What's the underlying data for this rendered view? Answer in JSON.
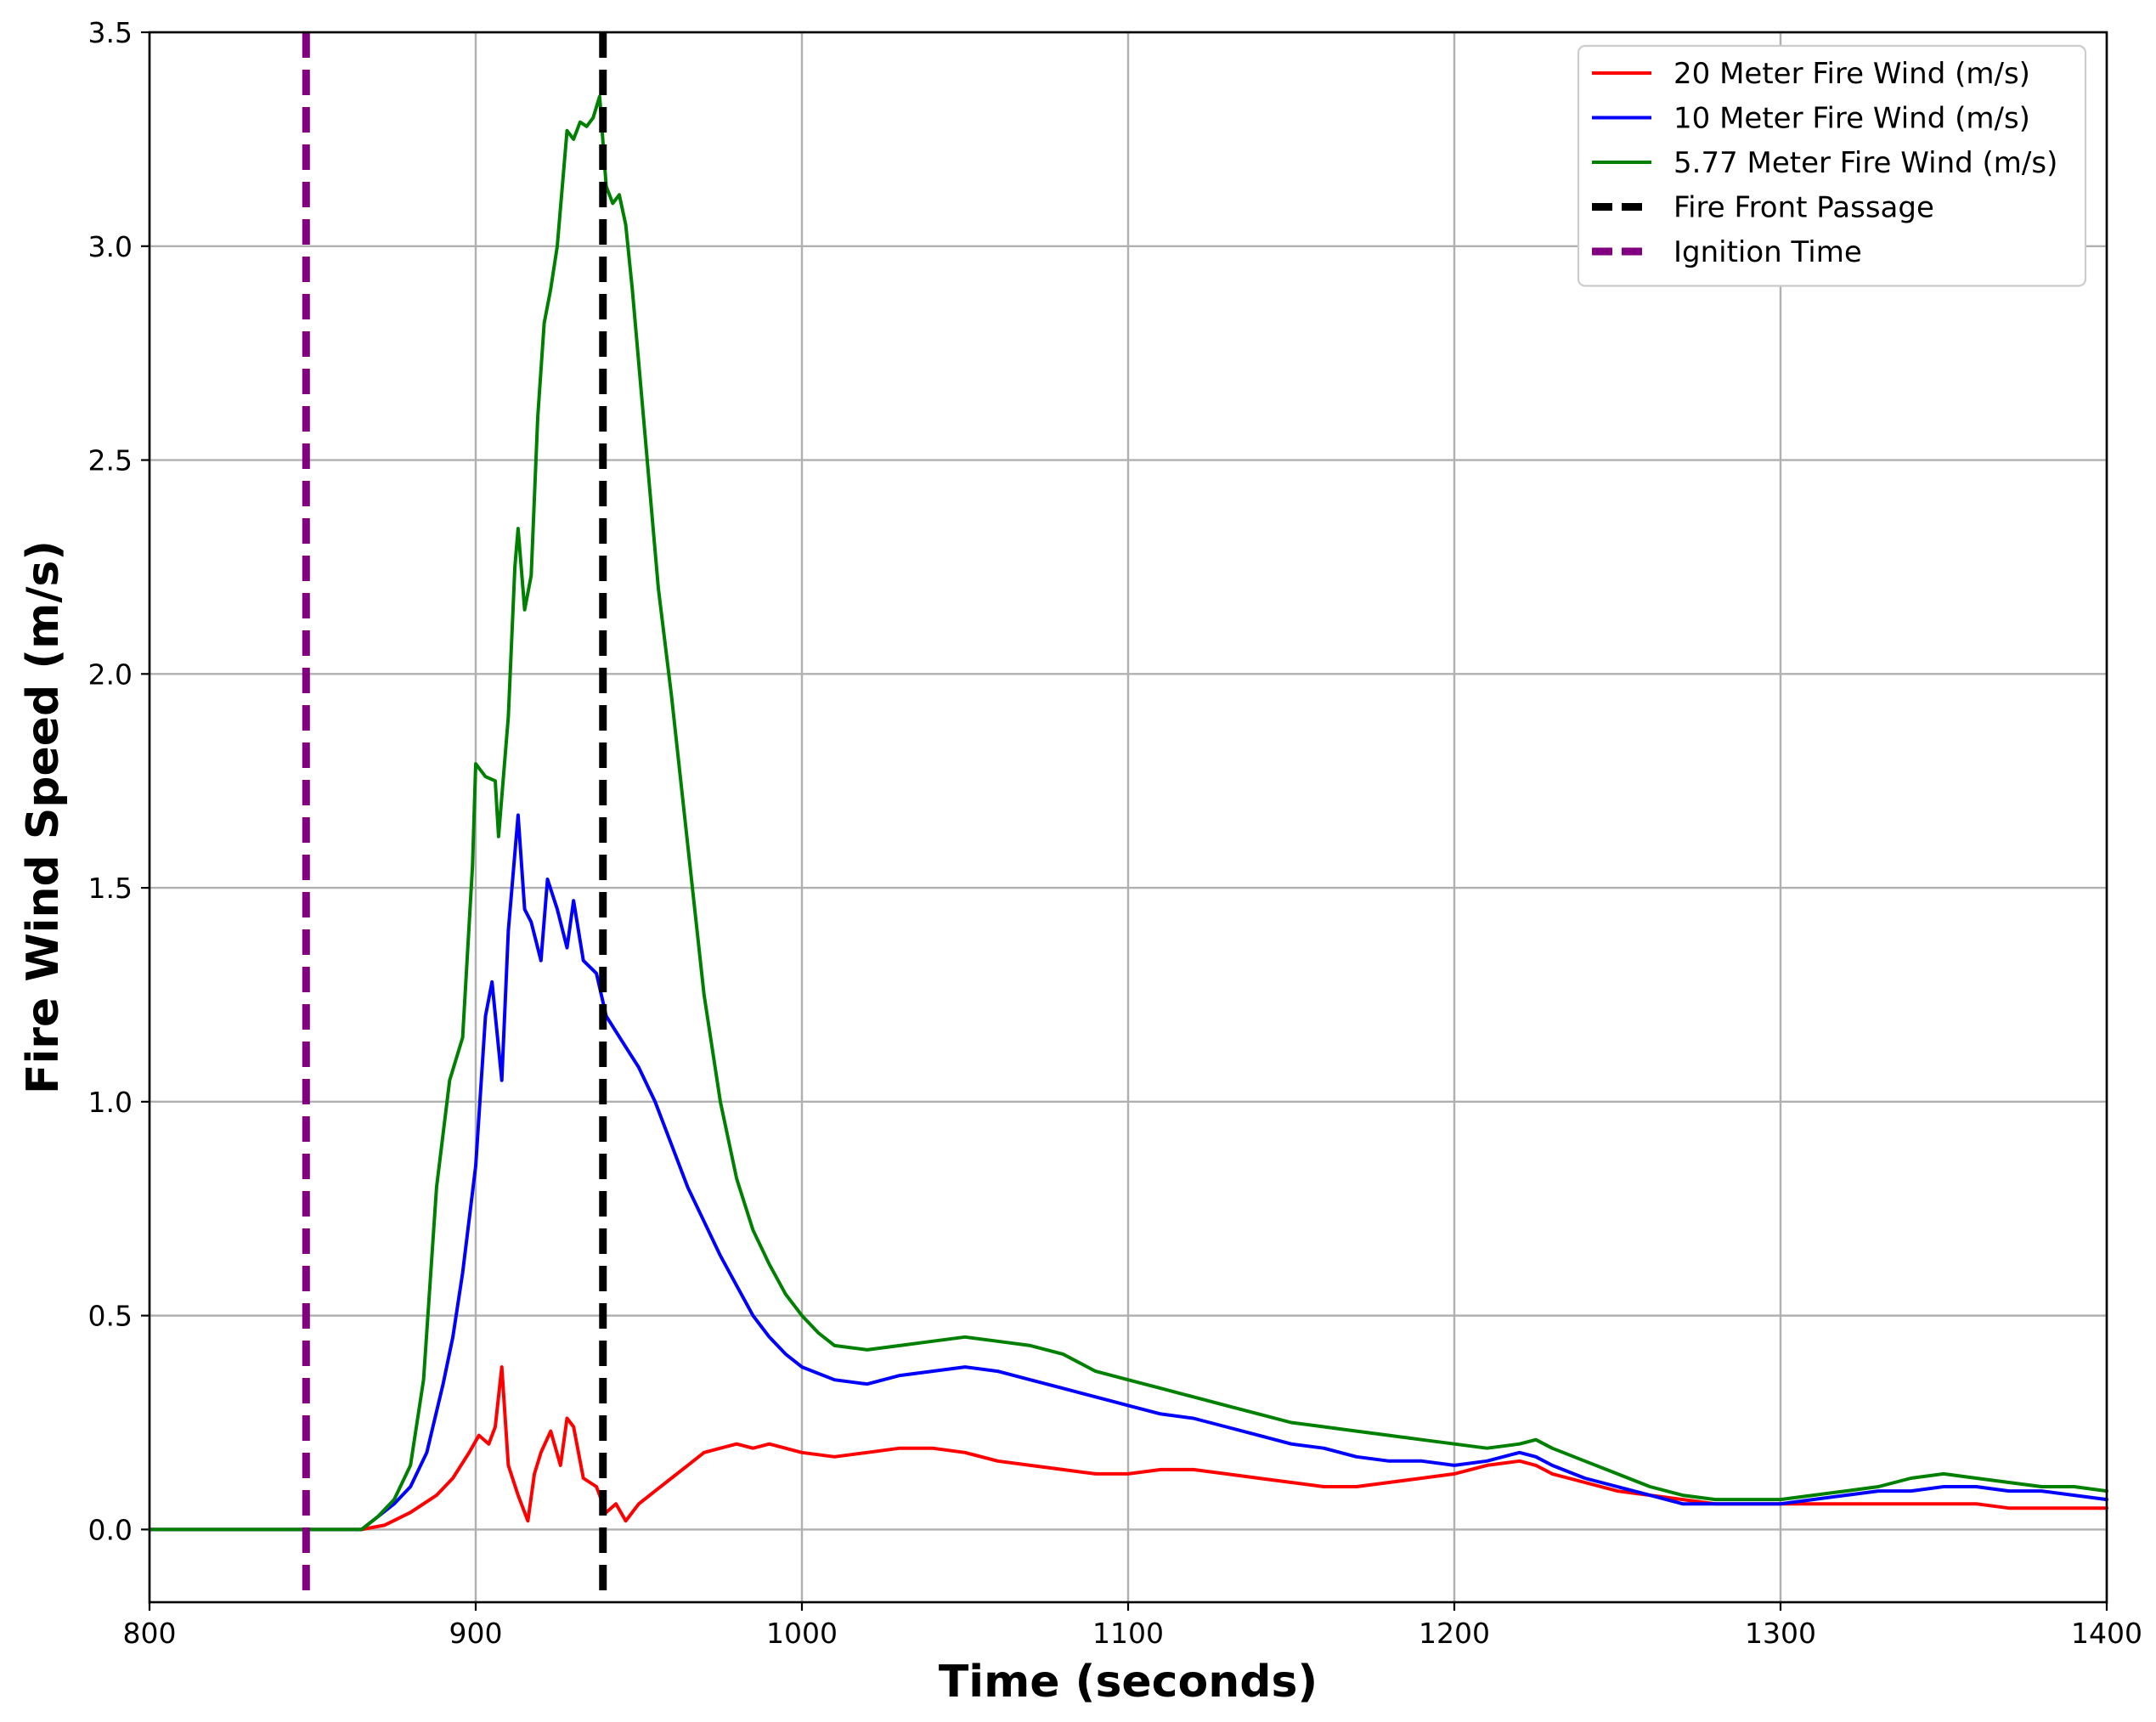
{
  "chart_data": {
    "type": "line",
    "title": "",
    "xlabel": "Time (seconds)",
    "ylabel": "Fire Wind Speed (m/s)",
    "xlim": [
      800,
      1400
    ],
    "ylim": [
      -0.17,
      3.5
    ],
    "x_ticks": [
      800,
      900,
      1000,
      1100,
      1200,
      1300,
      1400
    ],
    "y_ticks": [
      0.0,
      0.5,
      1.0,
      1.5,
      2.0,
      2.5,
      3.0,
      3.5
    ],
    "x_tick_labels": [
      "800",
      "900",
      "1000",
      "1100",
      "1200",
      "1300",
      "1400"
    ],
    "y_tick_labels": [
      "0.0",
      "0.5",
      "1.0",
      "1.5",
      "2.0",
      "2.5",
      "3.0",
      "3.5"
    ],
    "grid": true,
    "legend_position": "top-right",
    "series": [
      {
        "name": "20 Meter Fire Wind (m/s)",
        "color": "#ff0000",
        "x": [
          800,
          865,
          872,
          880,
          888,
          893,
          898,
          901,
          904,
          906,
          908,
          910,
          913,
          916,
          918,
          920,
          923,
          926,
          928,
          930,
          933,
          937,
          940,
          943,
          946,
          950,
          955,
          960,
          965,
          970,
          975,
          980,
          985,
          990,
          1000,
          1010,
          1020,
          1030,
          1040,
          1050,
          1060,
          1070,
          1080,
          1090,
          1100,
          1110,
          1120,
          1130,
          1140,
          1150,
          1160,
          1170,
          1180,
          1190,
          1200,
          1210,
          1220,
          1225,
          1230,
          1240,
          1250,
          1260,
          1270,
          1280,
          1290,
          1300,
          1310,
          1320,
          1330,
          1340,
          1350,
          1360,
          1370,
          1380,
          1390,
          1400
        ],
        "y": [
          0.0,
          0.0,
          0.01,
          0.04,
          0.08,
          0.12,
          0.18,
          0.22,
          0.2,
          0.24,
          0.38,
          0.15,
          0.08,
          0.02,
          0.13,
          0.18,
          0.23,
          0.15,
          0.26,
          0.24,
          0.12,
          0.1,
          0.04,
          0.06,
          0.02,
          0.06,
          0.09,
          0.12,
          0.15,
          0.18,
          0.19,
          0.2,
          0.19,
          0.2,
          0.18,
          0.17,
          0.18,
          0.19,
          0.19,
          0.18,
          0.16,
          0.15,
          0.14,
          0.13,
          0.13,
          0.14,
          0.14,
          0.13,
          0.12,
          0.11,
          0.1,
          0.1,
          0.11,
          0.12,
          0.13,
          0.15,
          0.16,
          0.15,
          0.13,
          0.11,
          0.09,
          0.08,
          0.07,
          0.06,
          0.06,
          0.06,
          0.06,
          0.06,
          0.06,
          0.06,
          0.06,
          0.06,
          0.05,
          0.05,
          0.05,
          0.05
        ]
      },
      {
        "name": "10 Meter Fire Wind (m/s)",
        "color": "#0000ff",
        "x": [
          800,
          865,
          870,
          875,
          880,
          885,
          890,
          893,
          896,
          900,
          903,
          905,
          908,
          910,
          913,
          915,
          917,
          920,
          922,
          925,
          928,
          930,
          933,
          937,
          940,
          945,
          950,
          955,
          960,
          965,
          970,
          975,
          980,
          985,
          990,
          995,
          1000,
          1010,
          1020,
          1030,
          1040,
          1050,
          1060,
          1070,
          1080,
          1090,
          1100,
          1110,
          1120,
          1130,
          1140,
          1150,
          1160,
          1170,
          1180,
          1190,
          1200,
          1210,
          1220,
          1225,
          1230,
          1240,
          1250,
          1260,
          1270,
          1280,
          1290,
          1300,
          1310,
          1320,
          1330,
          1340,
          1350,
          1360,
          1370,
          1380,
          1390,
          1400
        ],
        "y": [
          0.0,
          0.0,
          0.03,
          0.06,
          0.1,
          0.18,
          0.34,
          0.45,
          0.6,
          0.85,
          1.2,
          1.28,
          1.05,
          1.4,
          1.67,
          1.45,
          1.42,
          1.33,
          1.52,
          1.45,
          1.36,
          1.47,
          1.33,
          1.3,
          1.2,
          1.14,
          1.08,
          1.0,
          0.9,
          0.8,
          0.72,
          0.64,
          0.57,
          0.5,
          0.45,
          0.41,
          0.38,
          0.35,
          0.34,
          0.36,
          0.37,
          0.38,
          0.37,
          0.35,
          0.33,
          0.31,
          0.29,
          0.27,
          0.26,
          0.24,
          0.22,
          0.2,
          0.19,
          0.17,
          0.16,
          0.16,
          0.15,
          0.16,
          0.18,
          0.17,
          0.15,
          0.12,
          0.1,
          0.08,
          0.06,
          0.06,
          0.06,
          0.06,
          0.07,
          0.08,
          0.09,
          0.09,
          0.1,
          0.1,
          0.09,
          0.09,
          0.08,
          0.07
        ]
      },
      {
        "name": "5.77 Meter Fire Wind (m/s)",
        "color": "#008000",
        "x": [
          800,
          865,
          870,
          875,
          880,
          884,
          888,
          892,
          896,
          899,
          900,
          903,
          906,
          907,
          910,
          912,
          913,
          915,
          917,
          919,
          921,
          923,
          925,
          928,
          930,
          932,
          934,
          936,
          938,
          940,
          942,
          944,
          946,
          948,
          952,
          956,
          960,
          965,
          970,
          975,
          980,
          985,
          990,
          995,
          1000,
          1005,
          1010,
          1020,
          1030,
          1040,
          1050,
          1060,
          1070,
          1080,
          1090,
          1100,
          1110,
          1120,
          1130,
          1140,
          1150,
          1160,
          1170,
          1180,
          1190,
          1200,
          1210,
          1220,
          1225,
          1230,
          1240,
          1250,
          1260,
          1270,
          1280,
          1290,
          1300,
          1310,
          1320,
          1330,
          1340,
          1350,
          1360,
          1370,
          1380,
          1390,
          1400
        ],
        "y": [
          0.0,
          0.0,
          0.03,
          0.07,
          0.15,
          0.35,
          0.8,
          1.05,
          1.15,
          1.55,
          1.79,
          1.76,
          1.75,
          1.62,
          1.9,
          2.25,
          2.34,
          2.15,
          2.23,
          2.6,
          2.82,
          2.9,
          3.0,
          3.27,
          3.25,
          3.29,
          3.28,
          3.3,
          3.35,
          3.14,
          3.1,
          3.12,
          3.05,
          2.9,
          2.55,
          2.2,
          1.95,
          1.6,
          1.25,
          1.0,
          0.82,
          0.7,
          0.62,
          0.55,
          0.5,
          0.46,
          0.43,
          0.42,
          0.43,
          0.44,
          0.45,
          0.44,
          0.43,
          0.41,
          0.37,
          0.35,
          0.33,
          0.31,
          0.29,
          0.27,
          0.25,
          0.24,
          0.23,
          0.22,
          0.21,
          0.2,
          0.19,
          0.2,
          0.21,
          0.19,
          0.16,
          0.13,
          0.1,
          0.08,
          0.07,
          0.07,
          0.07,
          0.08,
          0.09,
          0.1,
          0.12,
          0.13,
          0.12,
          0.11,
          0.1,
          0.1,
          0.09
        ]
      }
    ],
    "vertical_lines": [
      {
        "name": "Fire Front Passage",
        "x": 939,
        "color": "#000000"
      },
      {
        "name": "Ignition Time",
        "x": 848,
        "color": "#800080"
      }
    ]
  }
}
